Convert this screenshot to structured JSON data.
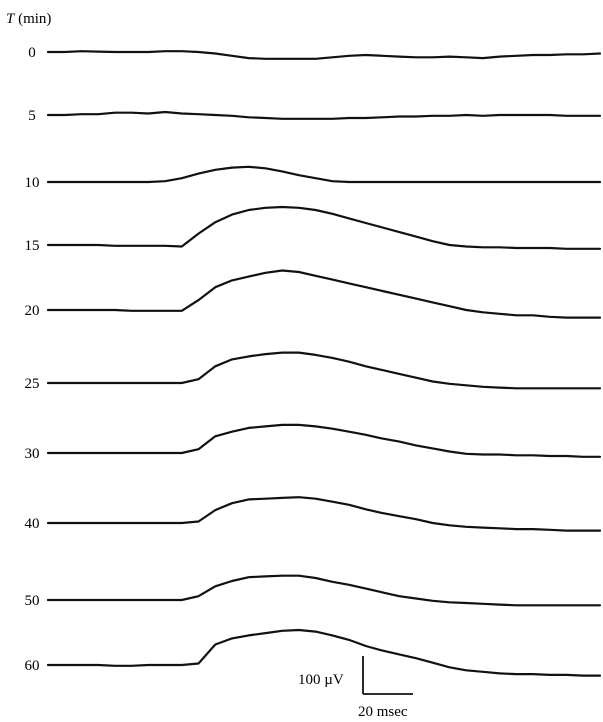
{
  "chart_data": {
    "type": "line",
    "title": "",
    "axis_title": {
      "italic": "T",
      "rest": " (min)"
    },
    "x_unit": "msec",
    "y_unit": "µV",
    "scale_bar": {
      "y_label": "100 µV",
      "x_label": "20 msec",
      "y_value": 100,
      "x_value": 20
    },
    "x": [
      0,
      5,
      10,
      15,
      20,
      25,
      30,
      35,
      40,
      45,
      50,
      55,
      60,
      65,
      70,
      75,
      80,
      85,
      90,
      95,
      100,
      105,
      110,
      115,
      120,
      125,
      130,
      135,
      140,
      145,
      150,
      155,
      160,
      165
    ],
    "series": [
      {
        "name": "0",
        "values": [
          0,
          0,
          2,
          1,
          0,
          0,
          0,
          2,
          2,
          0,
          -4,
          -10,
          -16,
          -18,
          -18,
          -18,
          -18,
          -14,
          -10,
          -8,
          -10,
          -12,
          -14,
          -14,
          -12,
          -14,
          -16,
          -12,
          -10,
          -8,
          -8,
          -6,
          -6,
          -4
        ]
      },
      {
        "name": "5",
        "values": [
          0,
          0,
          2,
          2,
          6,
          6,
          4,
          8,
          4,
          2,
          0,
          -2,
          -6,
          -8,
          -10,
          -10,
          -10,
          -10,
          -8,
          -8,
          -6,
          -4,
          -4,
          -2,
          -2,
          0,
          -2,
          0,
          0,
          0,
          0,
          -2,
          -2,
          -2
        ]
      },
      {
        "name": "10",
        "values": [
          0,
          0,
          0,
          0,
          0,
          0,
          0,
          2,
          10,
          22,
          32,
          38,
          40,
          36,
          28,
          18,
          10,
          2,
          0,
          0,
          0,
          0,
          0,
          0,
          0,
          0,
          0,
          0,
          0,
          0,
          0,
          0,
          0,
          0
        ]
      },
      {
        "name": "15",
        "values": [
          0,
          0,
          0,
          0,
          -2,
          -2,
          -2,
          -2,
          -4,
          30,
          60,
          80,
          92,
          98,
          100,
          98,
          92,
          82,
          70,
          58,
          46,
          34,
          22,
          10,
          0,
          -4,
          -6,
          -6,
          -8,
          -8,
          -8,
          -10,
          -10,
          -10
        ]
      },
      {
        "name": "20",
        "values": [
          0,
          0,
          0,
          0,
          0,
          -2,
          -2,
          -2,
          -2,
          26,
          60,
          78,
          88,
          98,
          104,
          100,
          90,
          80,
          70,
          60,
          50,
          40,
          30,
          20,
          10,
          0,
          -6,
          -10,
          -14,
          -14,
          -18,
          -20,
          -20,
          -20
        ]
      },
      {
        "name": "25",
        "values": [
          0,
          0,
          0,
          0,
          0,
          0,
          0,
          0,
          0,
          10,
          44,
          62,
          70,
          76,
          80,
          80,
          74,
          66,
          56,
          44,
          34,
          24,
          14,
          4,
          -2,
          -6,
          -10,
          -12,
          -14,
          -14,
          -14,
          -14,
          -14,
          -14
        ]
      },
      {
        "name": "30",
        "values": [
          0,
          0,
          0,
          0,
          0,
          0,
          0,
          0,
          0,
          10,
          44,
          56,
          66,
          70,
          74,
          74,
          70,
          64,
          56,
          48,
          38,
          30,
          20,
          12,
          4,
          -2,
          -4,
          -4,
          -6,
          -6,
          -8,
          -8,
          -10,
          -10
        ]
      },
      {
        "name": "40",
        "values": [
          0,
          0,
          0,
          0,
          0,
          0,
          0,
          0,
          0,
          4,
          34,
          52,
          62,
          64,
          66,
          68,
          64,
          56,
          48,
          36,
          26,
          18,
          10,
          0,
          -6,
          -10,
          -12,
          -14,
          -16,
          -16,
          -18,
          -20,
          -20,
          -20
        ]
      },
      {
        "name": "50",
        "values": [
          0,
          0,
          0,
          0,
          0,
          0,
          0,
          0,
          0,
          10,
          36,
          50,
          60,
          62,
          64,
          64,
          58,
          48,
          40,
          30,
          20,
          10,
          4,
          -2,
          -6,
          -8,
          -10,
          -12,
          -14,
          -14,
          -14,
          -14,
          -14,
          -14
        ]
      },
      {
        "name": "60",
        "values": [
          0,
          0,
          0,
          0,
          -2,
          -2,
          0,
          0,
          0,
          4,
          54,
          70,
          78,
          84,
          90,
          92,
          88,
          78,
          66,
          50,
          38,
          28,
          18,
          6,
          -6,
          -14,
          -18,
          -22,
          -24,
          -24,
          -26,
          -26,
          -28,
          -28
        ]
      }
    ]
  }
}
